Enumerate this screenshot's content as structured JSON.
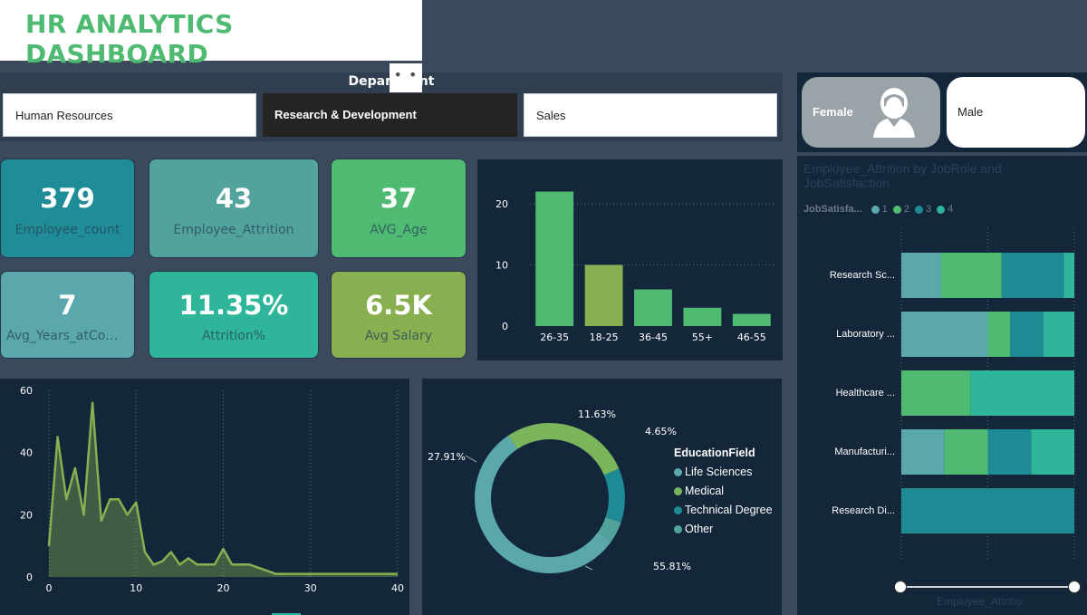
{
  "title": "HR ANALYTICS DASHBOARD",
  "department": {
    "title": "Department",
    "buttons": [
      "Human Resources",
      "Research & Development",
      "Sales"
    ],
    "selected": "Research & Development",
    "more": "• • •"
  },
  "gender": {
    "female": "Female",
    "male": "Male"
  },
  "kpis": [
    {
      "value": "379",
      "label": "Employee_count",
      "color": "#1f8c97"
    },
    {
      "value": "43",
      "label": "Employee_Attrition",
      "color": "#52a39c"
    },
    {
      "value": "37",
      "label": "AVG_Age",
      "color": "#4fbb72"
    },
    {
      "value": "7",
      "label": "Avg_Years_atCom...",
      "color": "#5aa8ac"
    },
    {
      "value": "11.35%",
      "label": "Attrition%",
      "color": "#2eb59a"
    },
    {
      "value": "6.5K",
      "label": "Avg Salary",
      "color": "#88b050"
    }
  ],
  "chart_data": [
    {
      "type": "bar",
      "categories": [
        "26-35",
        "18-25",
        "36-45",
        "55+",
        "46-55"
      ],
      "values": [
        22,
        10,
        6,
        3,
        2
      ],
      "ylim": [
        0,
        24
      ],
      "yticks": [
        0,
        10,
        20
      ],
      "colors": [
        "#4fbb72",
        "#88b050",
        "#4fbb72",
        "#4fbb72",
        "#4fbb72"
      ]
    },
    {
      "type": "area",
      "x": [
        0,
        1,
        2,
        3,
        4,
        5,
        6,
        7,
        8,
        9,
        10,
        11,
        12,
        13,
        14,
        15,
        16,
        17,
        18,
        19,
        20,
        21,
        22,
        23,
        24,
        25,
        26,
        27,
        28,
        30,
        32,
        34,
        36,
        38,
        40
      ],
      "y": [
        10,
        45,
        25,
        35,
        20,
        56,
        18,
        25,
        25,
        20,
        24,
        8,
        4,
        5,
        8,
        4,
        6,
        4,
        4,
        4,
        9,
        4,
        4,
        4,
        3,
        2,
        1,
        1,
        1,
        1,
        1,
        1,
        1,
        1,
        1
      ],
      "xlim": [
        0,
        40
      ],
      "ylim": [
        0,
        60
      ],
      "xticks": [
        0,
        10,
        20,
        30,
        40
      ],
      "yticks": [
        0,
        20,
        40,
        60
      ],
      "color": "#88b050"
    },
    {
      "type": "pie",
      "title": "EducationField",
      "categories": [
        "Life Sciences",
        "Medical",
        "Technical Degree",
        "Other"
      ],
      "values": [
        55.81,
        27.91,
        11.63,
        4.65
      ],
      "labels": [
        "55.81%",
        "27.91%",
        "11.63%",
        "4.65%"
      ],
      "colors": [
        "#5aa8ac",
        "#7ab55c",
        "#1d8a94",
        "#52a39c"
      ]
    },
    {
      "type": "bar",
      "orientation": "horizontal-stacked",
      "title": "Employee_Attrition by JobRole and JobSatisfaction",
      "legend_title": "JobSatisfa...",
      "series": [
        {
          "name": "1",
          "values": [
            0.23,
            0.5,
            0,
            0.25,
            0
          ]
        },
        {
          "name": "2",
          "values": [
            0.35,
            0.13,
            0.4,
            0.25,
            0
          ]
        },
        {
          "name": "3",
          "values": [
            0.36,
            0.19,
            0,
            0.25,
            1
          ]
        },
        {
          "name": "4",
          "values": [
            0.06,
            0.18,
            0.6,
            0.25,
            0
          ]
        }
      ],
      "categories": [
        "Research Sc...",
        "Laboratory ...",
        "Healthcare ...",
        "Manufacturi...",
        "Research Di..."
      ],
      "colors": [
        "#5aa8ac",
        "#4fbb72",
        "#1d8a94",
        "#2eb59a"
      ],
      "xlabel": "Employee_Attritio"
    }
  ]
}
